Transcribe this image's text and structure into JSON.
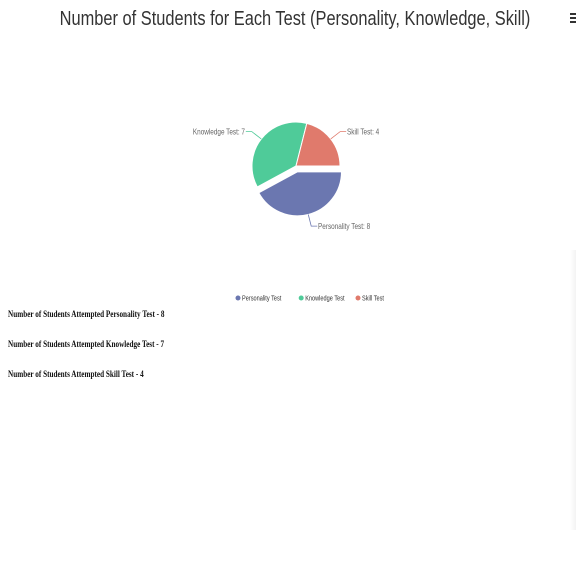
{
  "chart_data": {
    "type": "pie",
    "title": "Number of Students for Each Test (Personality, Knowledge, Skill)",
    "categories": [
      "Personality Test",
      "Knowledge Test",
      "Skill Test"
    ],
    "values": [
      8,
      7,
      4
    ],
    "slice_labels": [
      "Personality Test: 8",
      "Knowledge Test: 7",
      "Skill Test: 4"
    ],
    "legend": [
      "Personality Test",
      "Knowledge Test",
      "Skill Test"
    ],
    "legend_position": "bottom",
    "colors": [
      "#6b77b0",
      "#4fcb99",
      "#e07a6c"
    ],
    "exploded": "Personality Test"
  },
  "stats": [
    "Number of Students Attempted Personality Test - 8",
    "Number of Students Attempted Knowledge Test - 7",
    "Number of Students Attempted Skill Test - 4"
  ],
  "menu_icon": "hamburger-menu-icon"
}
